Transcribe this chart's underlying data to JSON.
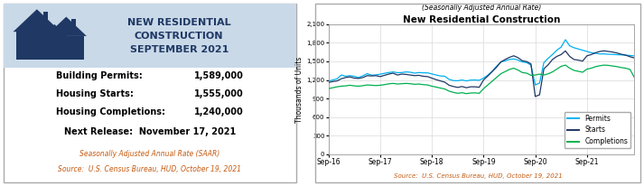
{
  "left_panel": {
    "header_bg": "#c9d9e8",
    "border_color": "#aaaaaa",
    "title_lines": [
      "NEW RESIDENTIAL",
      "CONSTRUCTION",
      "SEPTEMBER 2021"
    ],
    "title_color": "#1f3864",
    "stats": [
      {
        "label": "Building Permits:",
        "value": "1,589,000"
      },
      {
        "label": "Housing Starts:",
        "value": "1,555,000"
      },
      {
        "label": "Housing Completions:",
        "value": "1,240,000"
      }
    ],
    "next_release": "Next Release:  November 17, 2021",
    "footnote1": "Seasonally Adjusted Annual Rate (SAAR)",
    "footnote2": "Source:  U.S. Census Bureau, HUD, October 19, 2021",
    "footnote_color": "#c55a11",
    "house_color": "#1f3864"
  },
  "right_panel": {
    "title": "New Residential Construction",
    "subtitle": "(Seasonally Adjusted Annual Rate)",
    "ylabel": "Thousands of Units",
    "source": "Source:  U.S. Census Bureau, HUD, October 19, 2021",
    "source_color": "#c55a11",
    "yticks": [
      0,
      300,
      600,
      900,
      1200,
      1500,
      1800,
      2100
    ],
    "xtick_labels": [
      "Sep-16",
      "Sep-17",
      "Sep-18",
      "Sep-19",
      "Sep-20",
      "Sep-21"
    ],
    "permits_color": "#00b0f0",
    "starts_color": "#1f3864",
    "completions_color": "#00b050",
    "grid_color": "#d9d9d9",
    "permits_data": [
      1182,
      1200,
      1218,
      1280,
      1261,
      1270,
      1259,
      1240,
      1268,
      1302,
      1278,
      1282,
      1293,
      1308,
      1320,
      1330,
      1318,
      1320,
      1330,
      1325,
      1310,
      1320,
      1315,
      1315,
      1298,
      1280,
      1265,
      1260,
      1210,
      1190,
      1188,
      1200,
      1185,
      1198,
      1200,
      1195,
      1230,
      1278,
      1340,
      1420,
      1490,
      1510,
      1530,
      1540,
      1520,
      1490,
      1480,
      1440,
      1120,
      1150,
      1480,
      1550,
      1610,
      1680,
      1730,
      1850,
      1750,
      1720,
      1700,
      1680,
      1660,
      1640,
      1630,
      1620,
      1620,
      1615,
      1612,
      1608,
      1605,
      1600,
      1595,
      1589
    ],
    "starts_data": [
      1160,
      1175,
      1185,
      1220,
      1240,
      1250,
      1230,
      1225,
      1240,
      1270,
      1265,
      1270,
      1255,
      1275,
      1295,
      1310,
      1280,
      1295,
      1290,
      1280,
      1270,
      1275,
      1260,
      1255,
      1230,
      1205,
      1185,
      1165,
      1115,
      1095,
      1080,
      1095,
      1075,
      1090,
      1090,
      1082,
      1200,
      1265,
      1335,
      1405,
      1490,
      1530,
      1565,
      1590,
      1560,
      1510,
      1498,
      1460,
      934,
      960,
      1380,
      1446,
      1530,
      1580,
      1610,
      1669,
      1580,
      1530,
      1520,
      1505,
      1590,
      1610,
      1640,
      1660,
      1670,
      1660,
      1650,
      1635,
      1615,
      1600,
      1575,
      1555
    ],
    "completions_data": [
      1060,
      1075,
      1090,
      1100,
      1105,
      1115,
      1105,
      1100,
      1108,
      1120,
      1115,
      1110,
      1115,
      1125,
      1138,
      1145,
      1135,
      1140,
      1145,
      1140,
      1130,
      1135,
      1125,
      1120,
      1100,
      1085,
      1070,
      1055,
      1020,
      1000,
      985,
      995,
      980,
      990,
      992,
      985,
      1060,
      1120,
      1180,
      1240,
      1300,
      1335,
      1370,
      1390,
      1360,
      1320,
      1310,
      1275,
      1280,
      1295,
      1280,
      1300,
      1330,
      1375,
      1420,
      1440,
      1390,
      1355,
      1340,
      1325,
      1375,
      1390,
      1415,
      1430,
      1440,
      1435,
      1425,
      1415,
      1400,
      1390,
      1370,
      1240
    ]
  }
}
